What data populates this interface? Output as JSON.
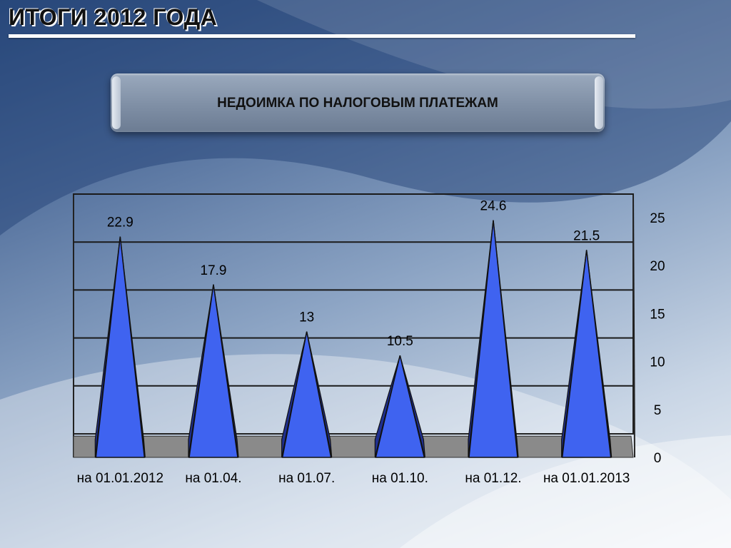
{
  "slide": {
    "title": "ИТОГИ 2012 ГОДА",
    "subtitle": "НЕДОИМКА ПО НАЛОГОВЫМ ПЛАТЕЖАМ"
  },
  "colors": {
    "bar_fill": "#3f63f0",
    "bar_dark": "#1f2f8f",
    "floor": "#8a8a8a"
  },
  "chart_data": {
    "type": "bar",
    "categories": [
      "на 01.01.2012",
      "на 01.04.",
      "на 01.07.",
      "на 01.10.",
      "на 01.12.",
      "на 01.01.2013"
    ],
    "values": [
      22.9,
      17.9,
      13,
      10.5,
      24.6,
      21.5
    ],
    "data_labels": [
      "22.9",
      "17.9",
      "13",
      "10.5",
      "24.6",
      "21.5"
    ],
    "ylim": [
      0,
      25
    ],
    "yticks": [
      0,
      5,
      10,
      15,
      20,
      25
    ],
    "ytick_labels": [
      "0",
      "5",
      "10",
      "15",
      "20",
      "25"
    ],
    "y_axis_side": "right",
    "grid": true,
    "legend": "none",
    "title": "",
    "xlabel": "",
    "ylabel": ""
  }
}
